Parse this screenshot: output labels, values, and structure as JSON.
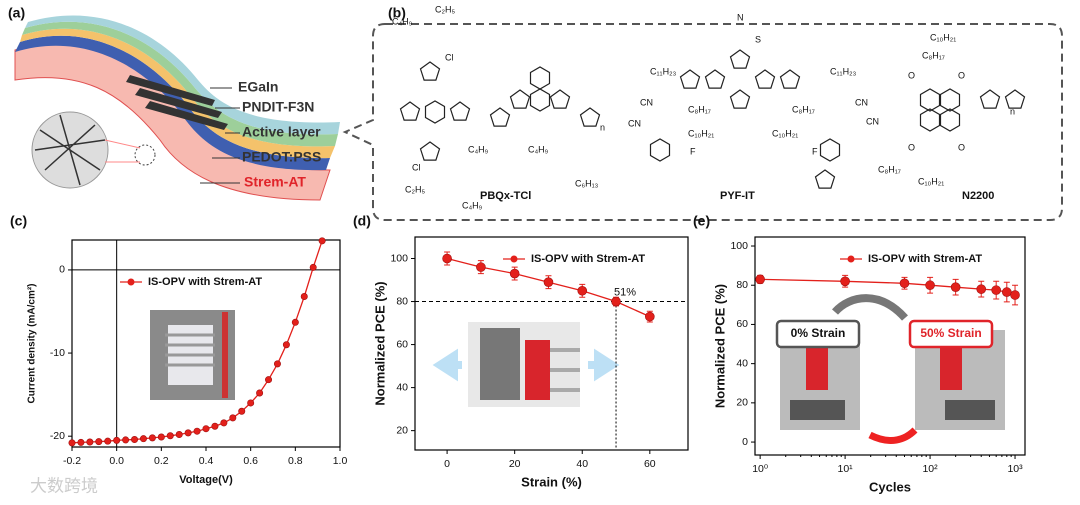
{
  "panel_a": {
    "label": "(a)",
    "layers": [
      "EGaIn",
      "PNDIT-F3N",
      "Active layer",
      "PEDOT:PSS",
      "Strem-AT"
    ]
  },
  "panel_b": {
    "label": "(b)",
    "molecules": [
      "PBQx-TCl",
      "PYF-IT",
      "N2200"
    ],
    "substituents": [
      "C₄H₉",
      "C₂H₅",
      "Cl",
      "C₄H₉",
      "C₂H₅",
      "C₄H₉",
      "Cl",
      "C₄H₉",
      "C₆H₁₃",
      "n",
      "C₁₁H₂₃",
      "C₁₁H₂₃",
      "C₈H₁₇",
      "C₁₀H₂₁",
      "C₈H₁₇",
      "C₁₀H₂₁",
      "CN",
      "CN",
      "CN",
      "CN",
      "F",
      "F",
      "N",
      "S",
      "C₁₀H₂₁",
      "C₈H₁₇",
      "C₈H₁₇",
      "C₁₀H₂₁",
      "O",
      "O",
      "O",
      "O",
      "n"
    ]
  },
  "watermark": "大数跨境",
  "chart_data": [
    {
      "type": "line",
      "label": "(c)",
      "xlabel": "Voltage(V)",
      "ylabel": "Current density (mA/cm²)",
      "xlim": [
        -0.2,
        1.0
      ],
      "ylim": [
        -21.3,
        3.6
      ],
      "xticks": [
        -0.2,
        {
          "value": 0,
          "label": "0.0"
        },
        0.2,
        0.4,
        0.6,
        0.8,
        {
          "value": 1,
          "label": "1.0"
        }
      ],
      "yticks": [
        -20,
        -10,
        0
      ],
      "zero_lines": true,
      "legend": "upper left",
      "x": [
        -0.2,
        -0.16,
        -0.12,
        -0.08,
        -0.04,
        0,
        0.04,
        0.08,
        0.12,
        0.16,
        0.2,
        0.24,
        0.28,
        0.32,
        0.36,
        0.4,
        0.44,
        0.48,
        0.52,
        0.56,
        0.6,
        0.64,
        0.68,
        0.72,
        0.76,
        0.8,
        0.84,
        0.88,
        0.92
      ],
      "series": [
        {
          "name": "IS-OPV with Strem-AT",
          "color": "#e3201b",
          "values": [
            -20.8,
            -20.75,
            -20.7,
            -20.65,
            -20.6,
            -20.5,
            -20.45,
            -20.4,
            -20.3,
            -20.2,
            -20.1,
            -19.95,
            -19.8,
            -19.6,
            -19.4,
            -19.1,
            -18.8,
            -18.4,
            -17.8,
            -17.0,
            -16.0,
            -14.8,
            -13.2,
            -11.3,
            -9.0,
            -6.3,
            -3.2,
            0.3,
            3.5
          ]
        }
      ]
    },
    {
      "type": "line",
      "label": "(d)",
      "xlabel": "Strain (%)",
      "ylabel": "Normalized PCE (%)",
      "xlim": [
        -9.5,
        71.3
      ],
      "ylim": [
        11,
        110
      ],
      "xticks": [
        0,
        20,
        40,
        60
      ],
      "yticks": [
        20,
        40,
        60,
        80,
        100
      ],
      "legend": "upper right",
      "reference_lines": {
        "x": 50,
        "y": 80
      },
      "annotation": "51%",
      "x": [
        0,
        10,
        20,
        30,
        40,
        50,
        60
      ],
      "series": [
        {
          "name": "IS-OPV with Strem-AT",
          "color": "#e3201b",
          "values": [
            100,
            96,
            93,
            89,
            85,
            80,
            73
          ],
          "errors": [
            3,
            3,
            3,
            3,
            3,
            2,
            2.5
          ]
        }
      ]
    },
    {
      "type": "line",
      "label": "(e)",
      "xlabel": "Cycles",
      "ylabel": "Normalized PCE (%)",
      "xscale": "log",
      "xlim": [
        0.87,
        1310
      ],
      "ylim": [
        -6.6,
        104.6
      ],
      "xticks": [
        {
          "value": 1,
          "label": "10⁰"
        },
        {
          "value": 10,
          "label": "10¹"
        },
        {
          "value": 100,
          "label": "10²"
        },
        {
          "value": 1000,
          "label": "10³"
        }
      ],
      "yticks": [
        0,
        20,
        40,
        60,
        80,
        100
      ],
      "legend": "upper right",
      "insets": [
        "0% Strain",
        "50% Strain"
      ],
      "x": [
        1,
        10,
        50,
        100,
        200,
        400,
        600,
        800,
        1000
      ],
      "series": [
        {
          "name": "IS-OPV with Strem-AT",
          "color": "#e3201b",
          "values": [
            83,
            82,
            81,
            80,
            79,
            78,
            77.5,
            76.5,
            75
          ],
          "errors": [
            2,
            3,
            3,
            4,
            4,
            4,
            4.5,
            5,
            5
          ]
        }
      ]
    }
  ]
}
